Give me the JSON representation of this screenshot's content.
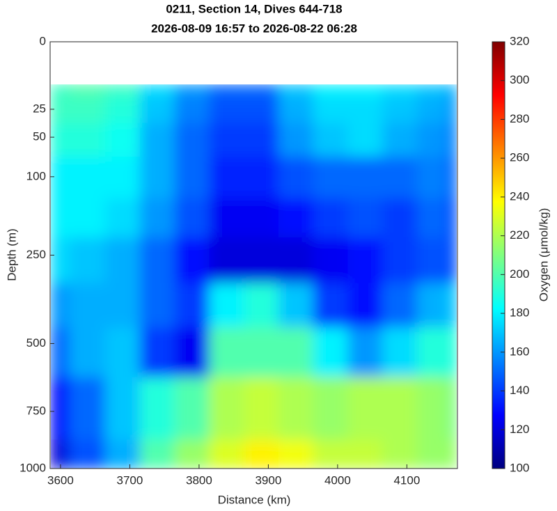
{
  "chart_data": {
    "type": "heatmap",
    "title": [
      "0211, Section 14, Dives 644-718",
      "2026-08-09 16:57 to 2026-08-22 06:28"
    ],
    "x_label": "Distance (km)",
    "y_label": "Depth (m)",
    "colorbar_label": "Oxygen (μmol/kg)",
    "colormap": "jet",
    "y_scale": "sqrt",
    "y_reversed": true,
    "xlim": [
      3585,
      4173
    ],
    "xticks": [
      3600,
      3700,
      3800,
      3900,
      4000,
      4100
    ],
    "ylim": [
      0,
      1000
    ],
    "yticks": [
      0,
      25,
      50,
      100,
      250,
      500,
      750,
      1000
    ],
    "clim": [
      100,
      320
    ],
    "cticks": [
      100,
      120,
      140,
      160,
      180,
      200,
      220,
      240,
      260,
      280,
      300,
      320
    ],
    "x": [
      3586,
      3640,
      3690,
      3740,
      3790,
      3840,
      3890,
      3940,
      3990,
      4040,
      4090,
      4140,
      4172
    ],
    "depths": [
      10,
      25,
      50,
      100,
      175,
      250,
      400,
      500,
      750,
      1000
    ],
    "values": [
      [
        195,
        200,
        195,
        175,
        160,
        150,
        150,
        170,
        180,
        180,
        175,
        170,
        165
      ],
      [
        195,
        195,
        190,
        170,
        155,
        145,
        145,
        165,
        175,
        175,
        170,
        165,
        160
      ],
      [
        190,
        190,
        185,
        165,
        150,
        140,
        140,
        160,
        170,
        175,
        165,
        160,
        155
      ],
      [
        180,
        180,
        180,
        165,
        150,
        135,
        135,
        145,
        150,
        150,
        150,
        155,
        150
      ],
      [
        180,
        180,
        175,
        160,
        145,
        125,
        125,
        130,
        140,
        145,
        140,
        150,
        145
      ],
      [
        175,
        170,
        165,
        150,
        130,
        120,
        120,
        120,
        125,
        130,
        140,
        145,
        145
      ],
      [
        160,
        165,
        165,
        150,
        140,
        180,
        190,
        170,
        140,
        130,
        150,
        165,
        170
      ],
      [
        150,
        165,
        170,
        140,
        125,
        200,
        200,
        200,
        180,
        160,
        175,
        190,
        190
      ],
      [
        130,
        150,
        170,
        190,
        200,
        220,
        225,
        220,
        215,
        220,
        220,
        215,
        210
      ],
      [
        120,
        145,
        165,
        200,
        215,
        230,
        240,
        235,
        225,
        225,
        220,
        215,
        215
      ]
    ]
  }
}
